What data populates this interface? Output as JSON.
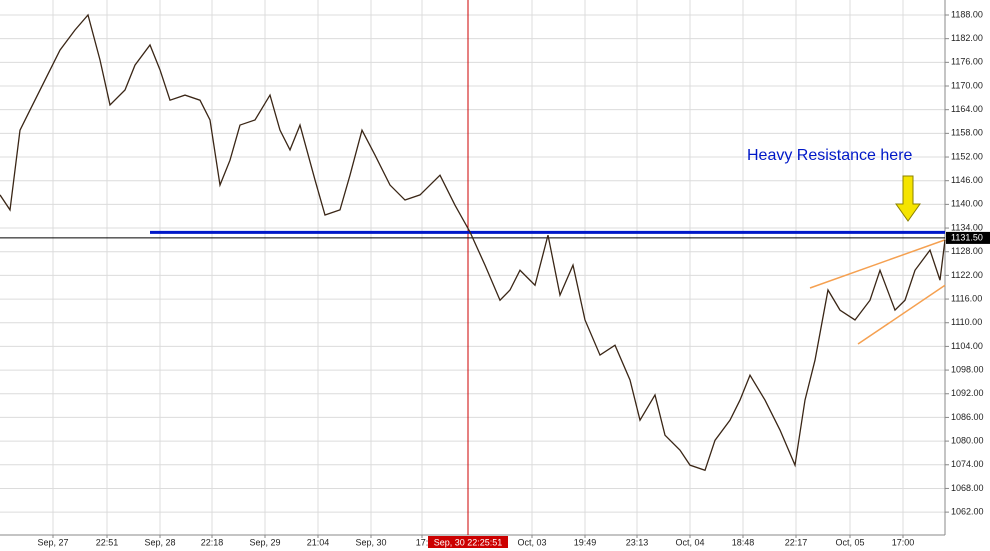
{
  "chart_data": {
    "type": "line",
    "annotation": "Heavy Resistance here",
    "x": [
      0,
      10,
      20,
      30,
      45,
      60,
      75,
      88,
      100,
      110,
      125,
      135,
      150,
      160,
      170,
      185,
      200,
      210,
      220,
      230,
      240,
      255,
      270,
      280,
      290,
      300,
      315,
      325,
      340,
      350,
      362,
      375,
      390,
      405,
      420,
      440,
      455,
      470,
      485,
      500,
      510,
      520,
      535,
      548,
      560,
      573,
      585,
      600,
      615,
      630,
      640,
      655,
      665,
      680,
      690,
      705,
      715,
      730,
      740,
      750,
      765,
      780,
      795,
      805,
      815,
      828,
      840,
      855,
      870,
      880,
      895,
      905,
      915,
      930,
      940,
      945
    ],
    "series": [
      {
        "color": "#3a2616",
        "values": [
          1142.4,
          1138.6,
          1158.8,
          1163.9,
          1171.5,
          1179.1,
          1184.2,
          1188.0,
          1176.6,
          1165.2,
          1169.0,
          1175.3,
          1180.4,
          1174.1,
          1166.4,
          1167.7,
          1166.4,
          1161.4,
          1144.9,
          1151.2,
          1160.1,
          1161.4,
          1167.7,
          1158.8,
          1153.8,
          1160.1,
          1146.2,
          1137.3,
          1138.6,
          1147.4,
          1158.8,
          1152.5,
          1144.9,
          1141.1,
          1142.4,
          1147.4,
          1139.8,
          1133.0,
          1124.6,
          1115.7,
          1118.3,
          1123.3,
          1119.5,
          1132.2,
          1117.0,
          1124.6,
          1110.7,
          1101.8,
          1104.3,
          1095.5,
          1085.3,
          1091.7,
          1081.5,
          1077.7,
          1073.9,
          1072.6,
          1080.2,
          1085.3,
          1090.4,
          1096.7,
          1090.4,
          1082.8,
          1073.9,
          1090.4,
          1100.5,
          1118.3,
          1113.2,
          1110.7,
          1115.7,
          1123.3,
          1113.2,
          1115.7,
          1123.3,
          1128.4,
          1120.8,
          1131.0
        ]
      }
    ],
    "xlim": [
      0,
      945
    ],
    "ylim": [
      1056.2,
      1191.8
    ],
    "xticks": [
      {
        "value": 53,
        "label": "Sep, 27"
      },
      {
        "value": 107,
        "label": "22:51"
      },
      {
        "value": 160,
        "label": "Sep, 28"
      },
      {
        "value": 212,
        "label": "22:18"
      },
      {
        "value": 265,
        "label": "Sep, 29"
      },
      {
        "value": 318,
        "label": "21:04"
      },
      {
        "value": 371,
        "label": "Sep, 30"
      },
      {
        "value": 422,
        "label": "17:"
      },
      {
        "value": 532,
        "label": "Oct, 03"
      },
      {
        "value": 585,
        "label": "19:49"
      },
      {
        "value": 637,
        "label": "23:13"
      },
      {
        "value": 690,
        "label": "Oct, 04"
      },
      {
        "value": 743,
        "label": "18:48"
      },
      {
        "value": 796,
        "label": "22:17"
      },
      {
        "value": 850,
        "label": "Oct, 05"
      },
      {
        "value": 903,
        "label": "17:00"
      }
    ],
    "yticks": [
      {
        "value": 1062,
        "label": "1062.00"
      },
      {
        "value": 1068,
        "label": "1068.00"
      },
      {
        "value": 1074,
        "label": "1074.00"
      },
      {
        "value": 1080,
        "label": "1080.00"
      },
      {
        "value": 1086,
        "label": "1086.00"
      },
      {
        "value": 1092,
        "label": "1092.00"
      },
      {
        "value": 1098,
        "label": "1098.00"
      },
      {
        "value": 1104,
        "label": "1104.00"
      },
      {
        "value": 1110,
        "label": "1110.00"
      },
      {
        "value": 1116,
        "label": "1116.00"
      },
      {
        "value": 1122,
        "label": "1122.00"
      },
      {
        "value": 1128,
        "label": "1128.00"
      },
      {
        "value": 1134,
        "label": "1134.00"
      },
      {
        "value": 1140,
        "label": "1140.00"
      },
      {
        "value": 1146,
        "label": "1146.00"
      },
      {
        "value": 1152,
        "label": "1152.00"
      },
      {
        "value": 1158,
        "label": "1158.00"
      },
      {
        "value": 1164,
        "label": "1164.00"
      },
      {
        "value": 1170,
        "label": "1170.00"
      },
      {
        "value": 1176,
        "label": "1176.00"
      },
      {
        "value": 1182,
        "label": "1182.00"
      },
      {
        "value": 1188,
        "label": "1188.00"
      }
    ],
    "grid": true,
    "resistance": {
      "color": "#0018c8",
      "x": [
        150,
        945
      ],
      "value": 1132.9
    },
    "last_price": {
      "value": 1131.5,
      "label": "1131.50"
    },
    "cursor": {
      "x": 468,
      "label": "Sep, 30 22:25:51",
      "color": "#cc0000"
    },
    "trend_lines": {
      "color": "#f5a050",
      "lines": [
        {
          "x": [
            810,
            945
          ],
          "values": [
            1118.8,
            1131.0
          ]
        },
        {
          "x": [
            858,
            945
          ],
          "values": [
            1104.6,
            1119.5
          ]
        }
      ]
    }
  }
}
